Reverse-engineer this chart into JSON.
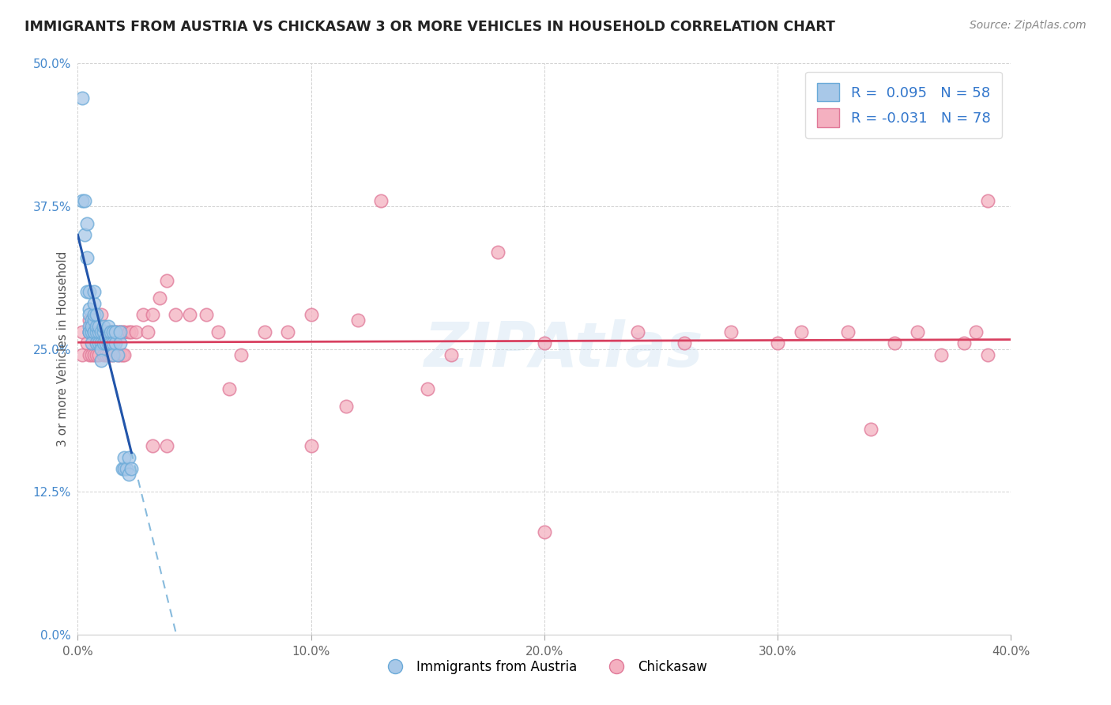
{
  "title": "IMMIGRANTS FROM AUSTRIA VS CHICKASAW 3 OR MORE VEHICLES IN HOUSEHOLD CORRELATION CHART",
  "source": "Source: ZipAtlas.com",
  "ylabel": "3 or more Vehicles in Household",
  "x_min": 0.0,
  "x_max": 0.4,
  "y_min": 0.0,
  "y_max": 0.5,
  "x_ticks": [
    0.0,
    0.1,
    0.2,
    0.3,
    0.4
  ],
  "x_tick_labels": [
    "0.0%",
    "10.0%",
    "20.0%",
    "30.0%",
    "40.0%"
  ],
  "y_ticks": [
    0.0,
    0.125,
    0.25,
    0.375,
    0.5
  ],
  "y_tick_labels": [
    "0.0%",
    "12.5%",
    "25.0%",
    "37.5%",
    "50.0%"
  ],
  "blue_R": 0.095,
  "blue_N": 58,
  "pink_R": -0.031,
  "pink_N": 78,
  "blue_color": "#a8c8e8",
  "pink_color": "#f4b0c0",
  "blue_edge": "#6aaad8",
  "pink_edge": "#e07898",
  "trend_blue_solid": "#2255aa",
  "trend_blue_dash": "#88bbdd",
  "trend_pink": "#d84060",
  "legend_blue_label": "Immigrants from Austria",
  "legend_pink_label": "Chickasaw",
  "watermark": "ZIPAtlas",
  "blue_x": [
    0.002,
    0.002,
    0.003,
    0.003,
    0.004,
    0.004,
    0.004,
    0.005,
    0.005,
    0.005,
    0.005,
    0.005,
    0.005,
    0.006,
    0.006,
    0.006,
    0.006,
    0.007,
    0.007,
    0.007,
    0.007,
    0.007,
    0.007,
    0.008,
    0.008,
    0.008,
    0.008,
    0.009,
    0.009,
    0.009,
    0.01,
    0.01,
    0.01,
    0.01,
    0.011,
    0.011,
    0.011,
    0.012,
    0.012,
    0.013,
    0.013,
    0.014,
    0.014,
    0.015,
    0.015,
    0.015,
    0.016,
    0.016,
    0.017,
    0.018,
    0.018,
    0.019,
    0.02,
    0.02,
    0.021,
    0.022,
    0.022,
    0.023
  ],
  "blue_y": [
    0.47,
    0.38,
    0.38,
    0.35,
    0.36,
    0.33,
    0.3,
    0.3,
    0.285,
    0.265,
    0.28,
    0.27,
    0.265,
    0.265,
    0.275,
    0.27,
    0.255,
    0.265,
    0.275,
    0.28,
    0.29,
    0.3,
    0.265,
    0.265,
    0.255,
    0.27,
    0.28,
    0.255,
    0.265,
    0.27,
    0.255,
    0.25,
    0.265,
    0.24,
    0.255,
    0.265,
    0.27,
    0.255,
    0.26,
    0.27,
    0.255,
    0.255,
    0.265,
    0.265,
    0.255,
    0.245,
    0.255,
    0.265,
    0.245,
    0.255,
    0.265,
    0.145,
    0.145,
    0.155,
    0.145,
    0.155,
    0.14,
    0.145
  ],
  "pink_x": [
    0.002,
    0.002,
    0.004,
    0.005,
    0.005,
    0.005,
    0.006,
    0.006,
    0.007,
    0.007,
    0.008,
    0.008,
    0.008,
    0.009,
    0.009,
    0.01,
    0.01,
    0.011,
    0.011,
    0.012,
    0.012,
    0.013,
    0.013,
    0.014,
    0.014,
    0.015,
    0.015,
    0.016,
    0.017,
    0.017,
    0.018,
    0.018,
    0.019,
    0.019,
    0.02,
    0.02,
    0.022,
    0.023,
    0.025,
    0.028,
    0.03,
    0.032,
    0.035,
    0.038,
    0.042,
    0.048,
    0.055,
    0.06,
    0.065,
    0.07,
    0.08,
    0.09,
    0.1,
    0.12,
    0.13,
    0.15,
    0.16,
    0.18,
    0.2,
    0.24,
    0.26,
    0.28,
    0.3,
    0.31,
    0.33,
    0.34,
    0.35,
    0.36,
    0.37,
    0.38,
    0.385,
    0.39,
    0.032,
    0.038,
    0.1,
    0.115,
    0.2,
    0.39
  ],
  "pink_y": [
    0.265,
    0.245,
    0.255,
    0.265,
    0.245,
    0.275,
    0.265,
    0.245,
    0.265,
    0.245,
    0.265,
    0.255,
    0.245,
    0.265,
    0.245,
    0.28,
    0.265,
    0.265,
    0.245,
    0.265,
    0.245,
    0.265,
    0.245,
    0.265,
    0.245,
    0.265,
    0.245,
    0.265,
    0.265,
    0.245,
    0.265,
    0.245,
    0.265,
    0.245,
    0.265,
    0.245,
    0.265,
    0.265,
    0.265,
    0.28,
    0.265,
    0.28,
    0.295,
    0.31,
    0.28,
    0.28,
    0.28,
    0.265,
    0.215,
    0.245,
    0.265,
    0.265,
    0.28,
    0.275,
    0.38,
    0.215,
    0.245,
    0.335,
    0.255,
    0.265,
    0.255,
    0.265,
    0.255,
    0.265,
    0.265,
    0.18,
    0.255,
    0.265,
    0.245,
    0.255,
    0.265,
    0.245,
    0.165,
    0.165,
    0.165,
    0.2,
    0.09,
    0.38
  ]
}
